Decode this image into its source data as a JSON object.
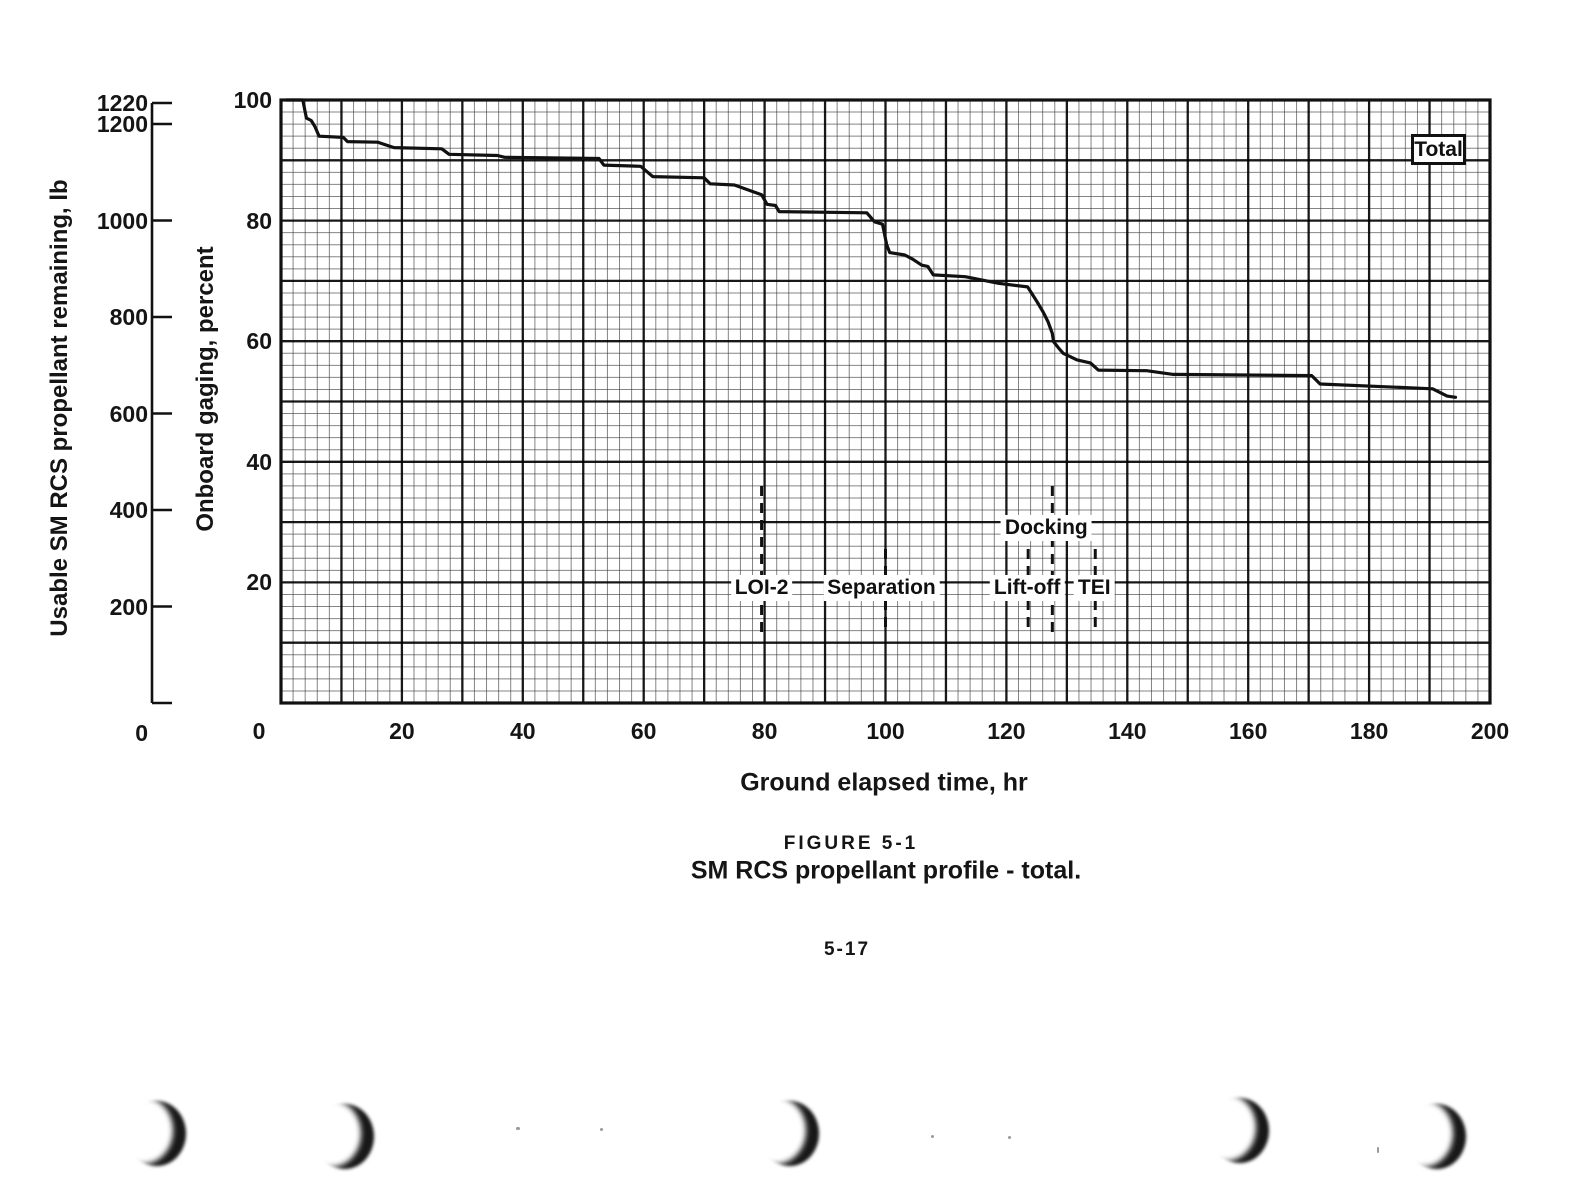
{
  "page": {
    "figure_label": "FIGURE 5-1",
    "figure_caption": "SM RCS propellant profile - total.",
    "page_number": "5-17"
  },
  "chart_data": {
    "type": "line",
    "title": "SM RCS propellant profile - total",
    "xlabel": "Ground elapsed time, hr",
    "xlim": [
      0,
      200
    ],
    "x_ticks": [
      0,
      20,
      40,
      60,
      80,
      100,
      120,
      140,
      160,
      180,
      200
    ],
    "x_minor_step": 2,
    "x_major_step": 10,
    "grid": true,
    "percent_axis": {
      "label": "Onboard gaging, percent",
      "lim": [
        0,
        100
      ],
      "ticks": [
        100,
        80,
        60,
        40,
        20
      ],
      "minor_step": 2,
      "major_step": 10
    },
    "lb_axis": {
      "label": "Usable SM RCS propellant remaining, lb",
      "ticks": [
        1220,
        1200,
        1000,
        800,
        600,
        400,
        200,
        0
      ],
      "lim": [
        0,
        1220
      ]
    },
    "legend": {
      "label": "Total",
      "position": "top-right"
    },
    "events": [
      {
        "label": "LOI-2",
        "time": 79.5,
        "raised": false,
        "full_dash": true,
        "dx": 0
      },
      {
        "label": "Separation",
        "time": 100.0,
        "raised": false,
        "full_dash": false,
        "dx": -4
      },
      {
        "label": "Docking",
        "time": 127.6,
        "raised": true,
        "full_dash": true,
        "dx": -6
      },
      {
        "label": "Lift-off",
        "time": 123.6,
        "raised": false,
        "full_dash": false,
        "dx": -1
      },
      {
        "label": "TEI",
        "time": 134.7,
        "raised": false,
        "full_dash": false,
        "dx": -1
      }
    ],
    "series": [
      {
        "name": "Total",
        "units": [
          "hr",
          "percent"
        ],
        "points": [
          [
            0.9,
            100
          ],
          [
            3.6,
            100
          ],
          [
            4.2,
            97.0
          ],
          [
            5.0,
            96.6
          ],
          [
            5.6,
            95.6
          ],
          [
            6.3,
            94.0
          ],
          [
            10.3,
            93.8
          ],
          [
            11.0,
            93.1
          ],
          [
            16.0,
            93.0
          ],
          [
            18.7,
            92.1
          ],
          [
            26.6,
            91.9
          ],
          [
            27.8,
            91.0
          ],
          [
            35.8,
            90.8
          ],
          [
            37.0,
            90.5
          ],
          [
            52.6,
            90.3
          ],
          [
            53.4,
            89.2
          ],
          [
            59.5,
            89.0
          ],
          [
            61.5,
            87.3
          ],
          [
            70.0,
            87.1
          ],
          [
            71.0,
            86.1
          ],
          [
            75.0,
            85.9
          ],
          [
            79.5,
            84.3
          ],
          [
            80.4,
            82.7
          ],
          [
            81.8,
            82.5
          ],
          [
            82.4,
            81.5
          ],
          [
            96.9,
            81.3
          ],
          [
            98.2,
            79.8
          ],
          [
            99.5,
            79.4
          ],
          [
            100.2,
            76.0
          ],
          [
            100.7,
            74.7
          ],
          [
            103.2,
            74.3
          ],
          [
            104.5,
            73.6
          ],
          [
            106.0,
            72.6
          ],
          [
            107.0,
            72.4
          ],
          [
            107.9,
            71.0
          ],
          [
            113.2,
            70.7
          ],
          [
            118.7,
            69.6
          ],
          [
            123.5,
            69.0
          ],
          [
            125.1,
            66.5
          ],
          [
            126.1,
            64.8
          ],
          [
            126.9,
            63.2
          ],
          [
            127.6,
            61.3
          ],
          [
            127.8,
            59.9
          ],
          [
            128.6,
            58.9
          ],
          [
            129.4,
            58.0
          ],
          [
            131.7,
            56.9
          ],
          [
            133.9,
            56.4
          ],
          [
            135.2,
            55.2
          ],
          [
            143.2,
            55.1
          ],
          [
            147.6,
            54.5
          ],
          [
            170.5,
            54.3
          ],
          [
            171.9,
            52.9
          ],
          [
            190.5,
            52.1
          ],
          [
            192.9,
            50.9
          ],
          [
            194.3,
            50.7
          ]
        ]
      }
    ],
    "colors": {
      "ink": "#111111",
      "grid_minor": "#3a3a3a",
      "grid_major": "#000000",
      "paper": "#ffffff"
    }
  }
}
